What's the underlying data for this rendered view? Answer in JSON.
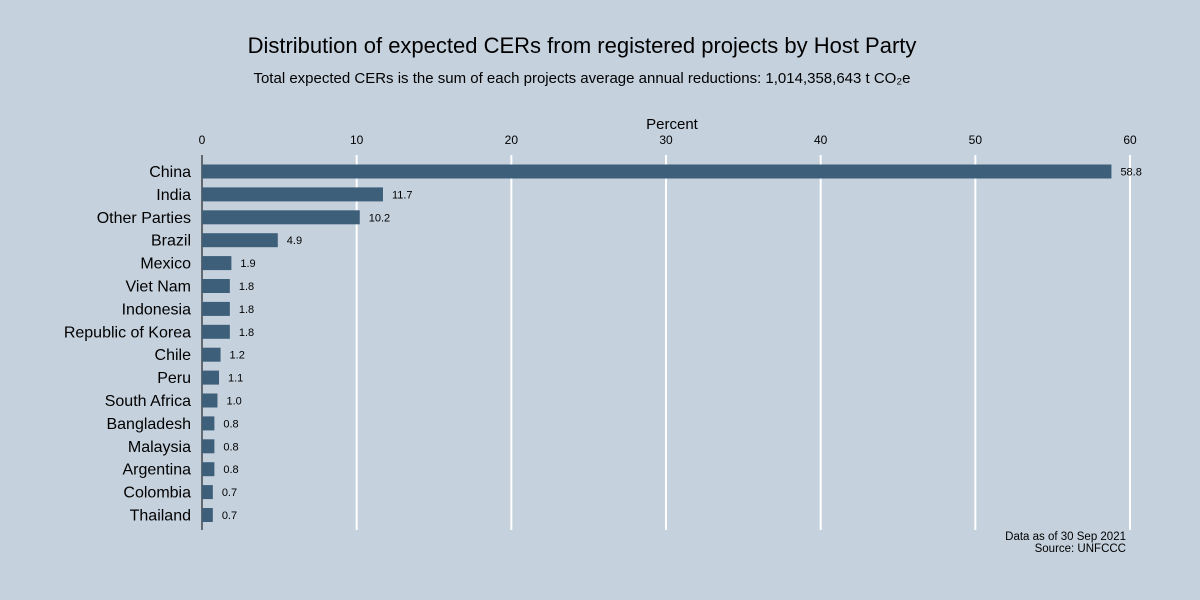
{
  "chart_data": {
    "type": "bar",
    "orientation": "horizontal",
    "title": "Distribution of expected CERs from registered projects by Host Party",
    "subtitle": "Total expected CERs is the sum of each projects average annual reductions: 1,014,358,643 t CO₂e",
    "xlabel": "Percent",
    "ylabel": "",
    "xlim": [
      0,
      60
    ],
    "xticks": [
      "0",
      "10",
      "20",
      "30",
      "40",
      "50",
      "60"
    ],
    "xaxis_position": "top",
    "grid": "vertical",
    "bar_color": "#3d5f7a",
    "background_color": "#c5d1dd",
    "categories": [
      "China",
      "India",
      "Other Parties",
      "Brazil",
      "Mexico",
      "Viet Nam",
      "Indonesia",
      "Republic of Korea",
      "Chile",
      "Peru",
      "South Africa",
      "Bangladesh",
      "Malaysia",
      "Argentina",
      "Colombia",
      "Thailand"
    ],
    "values": [
      58.8,
      11.7,
      10.2,
      4.9,
      1.9,
      1.8,
      1.8,
      1.8,
      1.2,
      1.1,
      1.0,
      0.8,
      0.8,
      0.8,
      0.7,
      0.7
    ],
    "value_labels": [
      "58.8",
      "11.7",
      "10.2",
      "4.9",
      "1.9",
      "1.8",
      "1.8",
      "1.8",
      "1.2",
      "1.1",
      "1.0",
      "0.8",
      "0.8",
      "0.8",
      "0.7",
      "0.7"
    ],
    "notes": [
      "Data as of 30 Sep 2021",
      "Source: UNFCCC"
    ]
  }
}
